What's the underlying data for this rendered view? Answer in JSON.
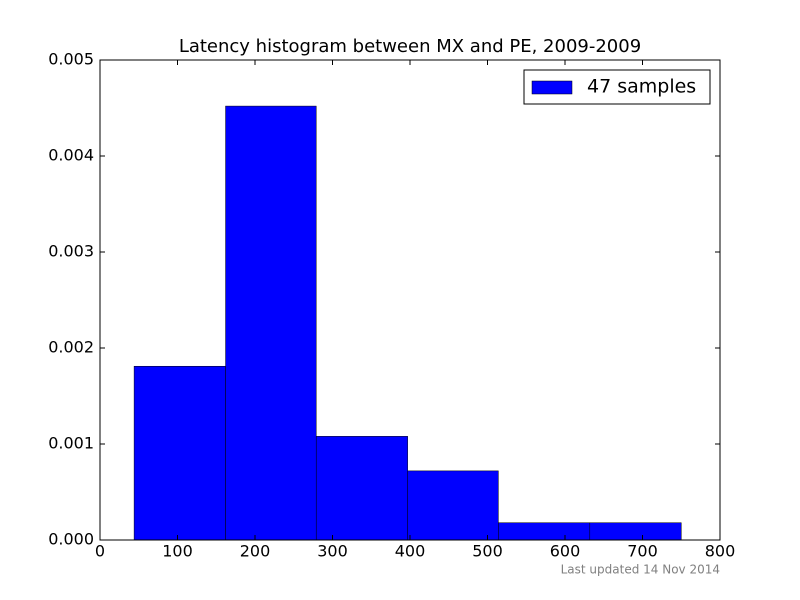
{
  "chart_data": {
    "type": "histogram",
    "title": "Latency histogram between MX and PE, 2009-2009",
    "bins": [
      44,
      162,
      279,
      397,
      514,
      632,
      750
    ],
    "series": [
      {
        "name": "47 samples",
        "color": "#0000ff",
        "values": [
          0.00181,
          0.00452,
          0.00108,
          0.00072,
          0.00018,
          0.00018
        ]
      }
    ],
    "xlim": [
      0,
      800
    ],
    "xticks": [
      0,
      100,
      200,
      300,
      400,
      500,
      600,
      700,
      800
    ],
    "ylim": [
      0,
      0.005
    ],
    "yticks": [
      {
        "value": 0,
        "label": "0.000"
      },
      {
        "value": 0.001,
        "label": "0.001"
      },
      {
        "value": 0.002,
        "label": "0.002"
      },
      {
        "value": 0.003,
        "label": "0.003"
      },
      {
        "value": 0.004,
        "label": "0.004"
      },
      {
        "value": 0.005,
        "label": "0.005"
      }
    ],
    "legend": "upper right",
    "grid": false
  },
  "footer": "Last updated 14 Nov 2014"
}
